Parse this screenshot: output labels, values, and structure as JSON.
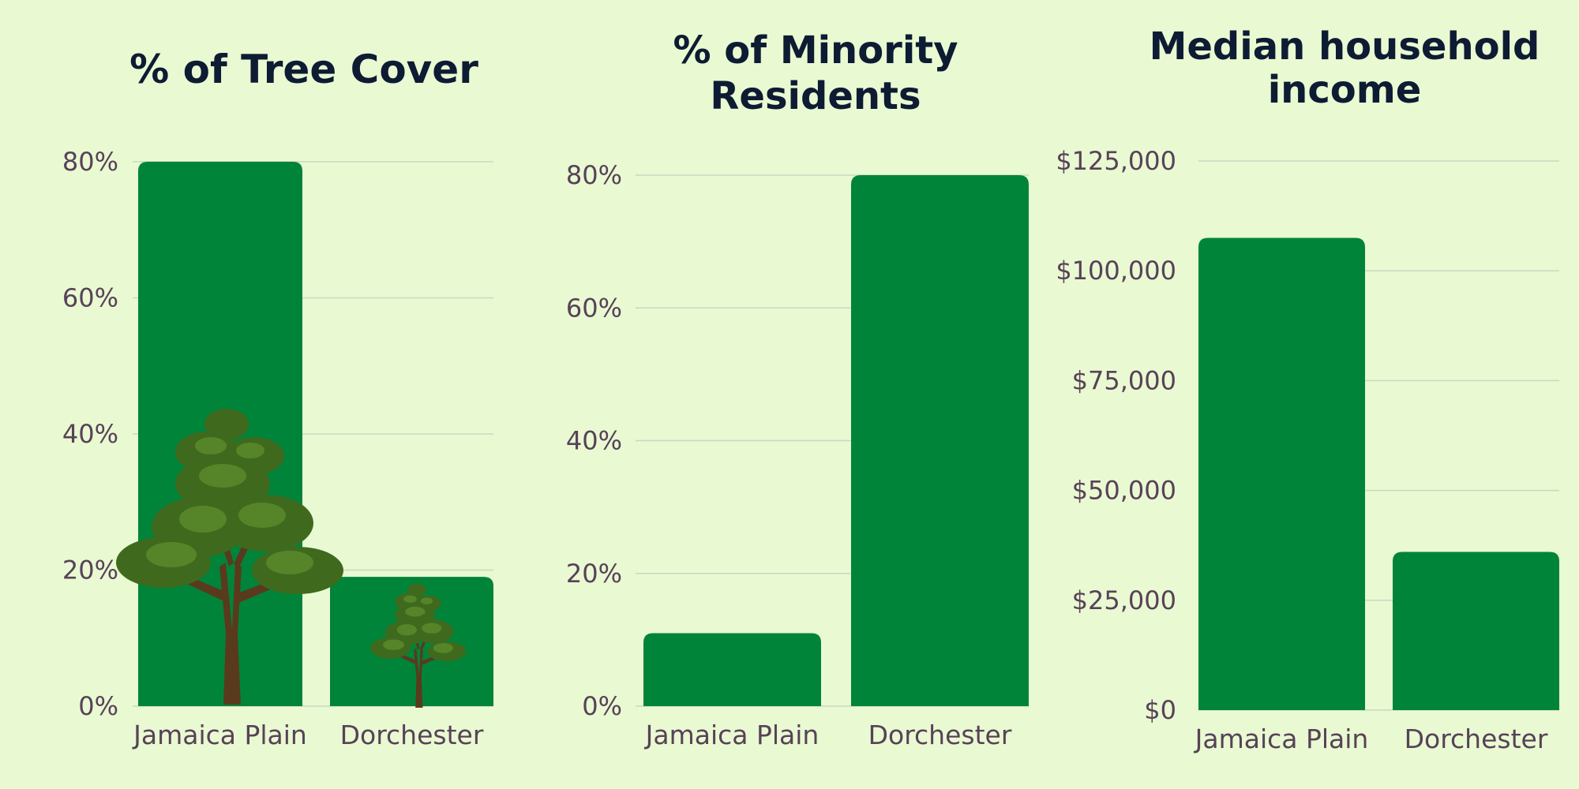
{
  "colors": {
    "background": "#e9f9d2",
    "bar": "#00843a",
    "grid": "#cbd8bf",
    "title": "#0d1b33",
    "tick": "#574257"
  },
  "chart_data": [
    {
      "type": "bar",
      "title": [
        "% of Tree Cover"
      ],
      "categories": [
        "Jamaica Plain",
        "Dorchester"
      ],
      "values": [
        80,
        19
      ],
      "ylim": [
        0,
        80
      ],
      "yticks": [
        0,
        20,
        40,
        60,
        80
      ],
      "ytick_labels": [
        "0%",
        "20%",
        "40%",
        "60%",
        "80%"
      ],
      "grid": true,
      "decoration": "tree-icon"
    },
    {
      "type": "bar",
      "title": [
        "% of Minority",
        "Residents"
      ],
      "categories": [
        "Jamaica Plain",
        "Dorchester"
      ],
      "values": [
        11,
        80
      ],
      "ylim": [
        0,
        80
      ],
      "yticks": [
        0,
        20,
        40,
        60,
        80
      ],
      "ytick_labels": [
        "0%",
        "20%",
        "40%",
        "60%",
        "80%"
      ],
      "grid": true
    },
    {
      "type": "bar",
      "title": [
        "Median household",
        "income"
      ],
      "categories": [
        "Jamaica Plain",
        "Dorchester"
      ],
      "values": [
        107500,
        36000
      ],
      "ylim": [
        0,
        125000
      ],
      "yticks": [
        0,
        25000,
        50000,
        75000,
        100000,
        125000
      ],
      "ytick_labels": [
        "$0",
        "$25,000",
        "$50,000",
        "$75,000",
        "$100,000",
        "$125,000"
      ],
      "grid": true
    }
  ]
}
